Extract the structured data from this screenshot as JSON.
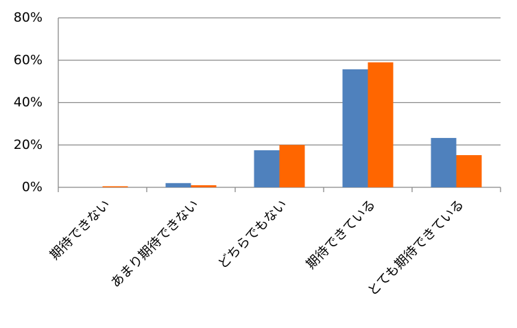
{
  "chart_data": {
    "type": "bar",
    "categories": [
      "期待できない",
      "あまり期待できない",
      "どちらでもない",
      "期待できている",
      "とても期待できている"
    ],
    "series": [
      {
        "color": "#4f81bd",
        "values": [
          0,
          2,
          17.5,
          55.7,
          23.3
        ]
      },
      {
        "color": "#ff6600",
        "values": [
          0.5,
          1,
          20,
          59,
          15.2
        ]
      }
    ],
    "ylim": [
      0,
      80
    ],
    "yticks": [
      {
        "value": 0,
        "label": "0%"
      },
      {
        "value": 20,
        "label": "20%"
      },
      {
        "value": 40,
        "label": "40%"
      },
      {
        "value": 60,
        "label": "60%"
      },
      {
        "value": 80,
        "label": "80%"
      }
    ],
    "grid": true
  }
}
